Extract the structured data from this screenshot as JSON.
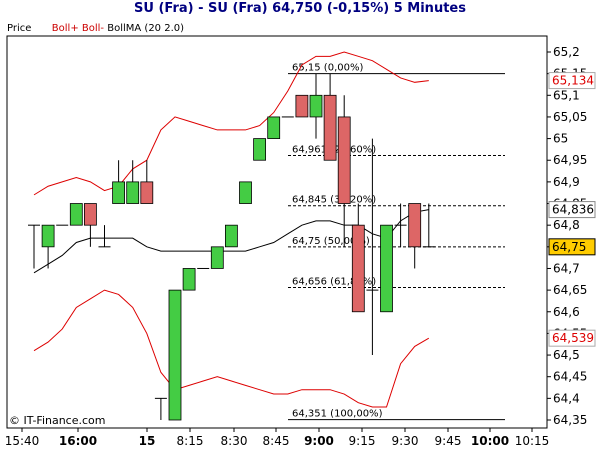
{
  "header": {
    "title": "SU (Fra) - SU (Fra)     64,750 (-0,15%)     5 Minutes"
  },
  "legend": {
    "price": "Price",
    "boll_plus": "Boll+",
    "boll_minus": "Boll-",
    "bollma": "BollMA (20 2.0)"
  },
  "copyright": "© IT-Finance.com",
  "colors": {
    "up": "#44cc44",
    "down": "#dd6666",
    "band": "#dd0000",
    "ma": "#000000",
    "current_price_bg": "#ffcc00"
  },
  "chart_data": {
    "type": "candlestick",
    "title": "SU (Fra) - SU (Fra)     64,750 (-0,15%)     5 Minutes",
    "ylim": [
      64.33,
      65.24
    ],
    "y_ticks": [
      "65,2",
      "65,15",
      "65,1",
      "65,05",
      "65",
      "64,95",
      "64,9",
      "64,85",
      "64,8",
      "64,75",
      "64,7",
      "64,65",
      "64,6",
      "64,55",
      "64,5",
      "64,45",
      "64,4",
      "64,35"
    ],
    "x_ticks": [
      "15:40",
      "16:00",
      "15",
      "8:15",
      "8:30",
      "8:45",
      "9:00",
      "9:15",
      "9:30",
      "9:45",
      "10:00",
      "10:15"
    ],
    "price_labels": [
      {
        "label": "65,134",
        "value": 65.134,
        "style": "band"
      },
      {
        "label": "64,836",
        "value": 64.836,
        "style": "ma"
      },
      {
        "label": "64,75",
        "value": 64.75,
        "style": "current"
      },
      {
        "label": "64,539",
        "value": 64.539,
        "style": "band"
      }
    ],
    "fibonacci": [
      {
        "label": "65,15 (0,00%)",
        "value": 65.15,
        "solid": true
      },
      {
        "label": "64,961 (23,60%)",
        "value": 64.961,
        "solid": false
      },
      {
        "label": "64,845 (38,20%)",
        "value": 64.845,
        "solid": false
      },
      {
        "label": "64,75 (50,00%)",
        "value": 64.75,
        "solid": false
      },
      {
        "label": "64,656 (61,80%)",
        "value": 64.656,
        "solid": false
      },
      {
        "label": "64,351 (100,00%)",
        "value": 64.351,
        "solid": true
      }
    ],
    "candles": [
      {
        "open": 64.8,
        "high": 64.8,
        "low": 64.7,
        "close": 64.8
      },
      {
        "open": 64.75,
        "high": 64.8,
        "low": 64.7,
        "close": 64.8
      },
      {
        "open": 64.8,
        "high": 64.8,
        "low": 64.8,
        "close": 64.8
      },
      {
        "open": 64.8,
        "high": 64.85,
        "low": 64.8,
        "close": 64.85
      },
      {
        "open": 64.85,
        "high": 64.85,
        "low": 64.75,
        "close": 64.8
      },
      {
        "open": 64.75,
        "high": 64.8,
        "low": 64.75,
        "close": 64.75
      },
      {
        "open": 64.85,
        "high": 64.95,
        "low": 64.85,
        "close": 64.9
      },
      {
        "open": 64.85,
        "high": 64.95,
        "low": 64.85,
        "close": 64.9
      },
      {
        "open": 64.9,
        "high": 64.95,
        "low": 64.85,
        "close": 64.85
      },
      {
        "open": 64.4,
        "high": 64.4,
        "low": 64.35,
        "close": 64.4
      },
      {
        "open": 64.35,
        "high": 64.65,
        "low": 64.35,
        "close": 64.65
      },
      {
        "open": 64.65,
        "high": 64.7,
        "low": 64.65,
        "close": 64.7
      },
      {
        "open": 64.7,
        "high": 64.7,
        "low": 64.7,
        "close": 64.7
      },
      {
        "open": 64.7,
        "high": 64.75,
        "low": 64.7,
        "close": 64.75
      },
      {
        "open": 64.75,
        "high": 64.8,
        "low": 64.75,
        "close": 64.8
      },
      {
        "open": 64.85,
        "high": 64.9,
        "low": 64.85,
        "close": 64.9
      },
      {
        "open": 64.95,
        "high": 65.0,
        "low": 64.95,
        "close": 65.0
      },
      {
        "open": 65.0,
        "high": 65.05,
        "low": 65.0,
        "close": 65.05
      },
      {
        "open": 65.05,
        "high": 65.05,
        "low": 65.05,
        "close": 65.05
      },
      {
        "open": 65.1,
        "high": 65.1,
        "low": 65.05,
        "close": 65.05
      },
      {
        "open": 65.05,
        "high": 65.15,
        "low": 65.0,
        "close": 65.1
      },
      {
        "open": 65.1,
        "high": 65.15,
        "low": 64.95,
        "close": 64.95
      },
      {
        "open": 65.05,
        "high": 65.1,
        "low": 64.75,
        "close": 64.85
      },
      {
        "open": 64.8,
        "high": 64.85,
        "low": 64.6,
        "close": 64.6
      },
      {
        "open": 64.65,
        "high": 65.0,
        "low": 64.5,
        "close": 64.65
      },
      {
        "open": 64.6,
        "high": 64.8,
        "low": 64.6,
        "close": 64.8
      },
      {
        "open": 64.8,
        "high": 64.85,
        "low": 64.75,
        "close": 64.8
      },
      {
        "open": 64.85,
        "high": 64.85,
        "low": 64.7,
        "close": 64.75
      },
      {
        "open": 64.75,
        "high": 64.85,
        "low": 64.75,
        "close": 64.75
      }
    ],
    "series": [
      {
        "name": "Boll+",
        "values": [
          64.87,
          64.89,
          64.9,
          64.91,
          64.9,
          64.88,
          64.89,
          64.93,
          64.95,
          65.02,
          65.05,
          65.04,
          65.03,
          65.02,
          65.02,
          65.02,
          65.03,
          65.06,
          65.11,
          65.17,
          65.19,
          65.19,
          65.2,
          65.19,
          65.18,
          65.16,
          65.14,
          65.13,
          65.134
        ]
      },
      {
        "name": "Boll-",
        "values": [
          64.51,
          64.53,
          64.56,
          64.61,
          64.63,
          64.65,
          64.64,
          64.61,
          64.55,
          64.46,
          64.42,
          64.43,
          64.44,
          64.45,
          64.44,
          64.43,
          64.42,
          64.41,
          64.41,
          64.42,
          64.42,
          64.42,
          64.41,
          64.39,
          64.38,
          64.38,
          64.48,
          64.52,
          64.539
        ]
      },
      {
        "name": "BollMA",
        "values": [
          64.69,
          64.71,
          64.73,
          64.76,
          64.77,
          64.77,
          64.77,
          64.77,
          64.75,
          64.74,
          64.74,
          64.74,
          64.74,
          64.74,
          64.74,
          64.74,
          64.75,
          64.76,
          64.78,
          64.8,
          64.81,
          64.81,
          64.8,
          64.8,
          64.78,
          64.77,
          64.81,
          64.83,
          64.836
        ]
      }
    ]
  }
}
